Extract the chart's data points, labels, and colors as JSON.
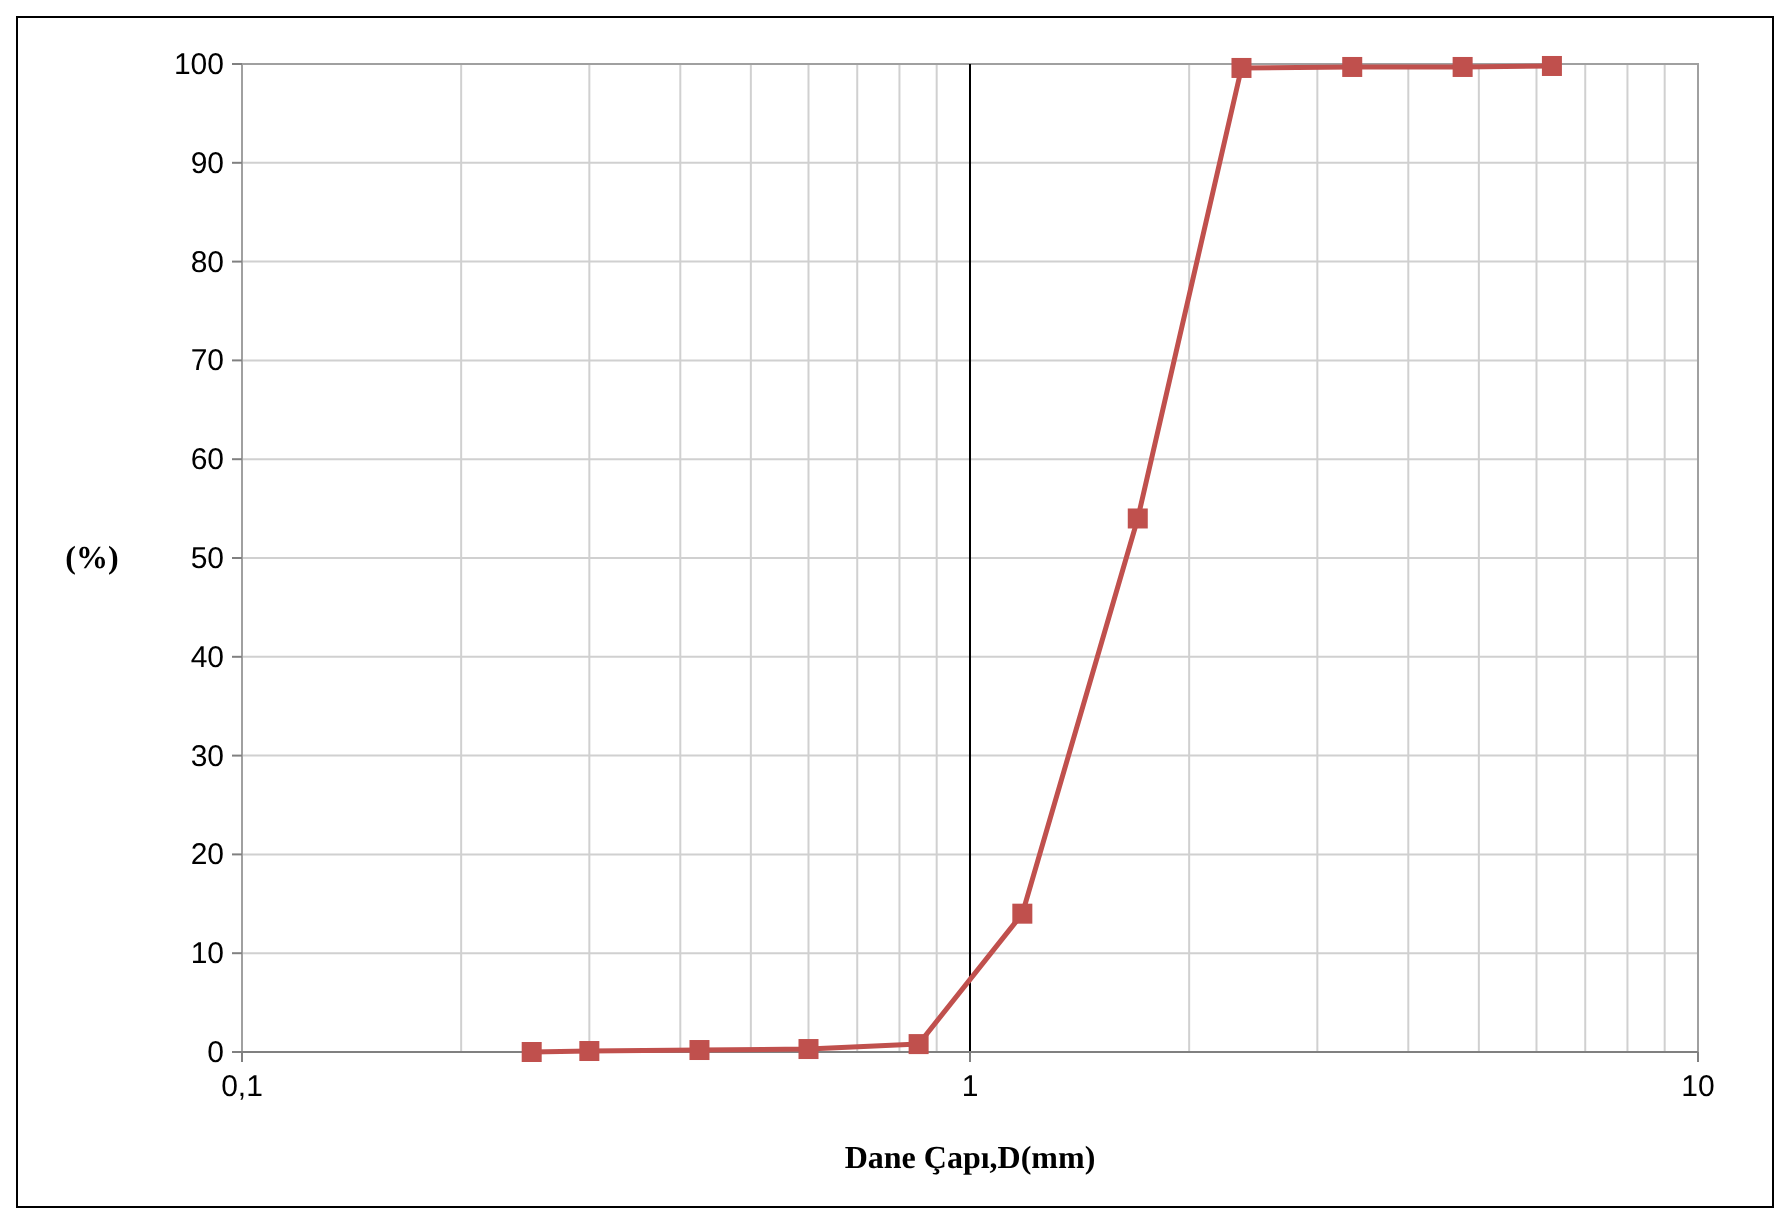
{
  "chart_data": {
    "type": "line",
    "xlabel": "Dane Çapı,D(mm)",
    "ylabel": "(%)",
    "x": [
      0.25,
      0.3,
      0.425,
      0.6,
      0.85,
      1.18,
      1.7,
      2.36,
      3.35,
      4.75,
      6.3
    ],
    "series": [
      {
        "color": "#c0504d",
        "values": [
          0,
          0.1,
          0.2,
          0.3,
          0.8,
          14,
          54,
          99.6,
          99.7,
          99.7,
          99.8
        ]
      }
    ],
    "log": "x",
    "xlim": [
      0.1,
      10
    ],
    "xticks": [
      {
        "value": 0.1,
        "label": "0,1"
      },
      1,
      10
    ],
    "ylim": [
      0,
      100
    ],
    "yticks": [
      0,
      10,
      20,
      30,
      40,
      50,
      60,
      70,
      80,
      90,
      100
    ],
    "grid": true,
    "marker": "square",
    "line_style": "solid",
    "ref_lines": [
      {
        "axis": "x",
        "value": 1,
        "color": "#000000"
      }
    ]
  }
}
